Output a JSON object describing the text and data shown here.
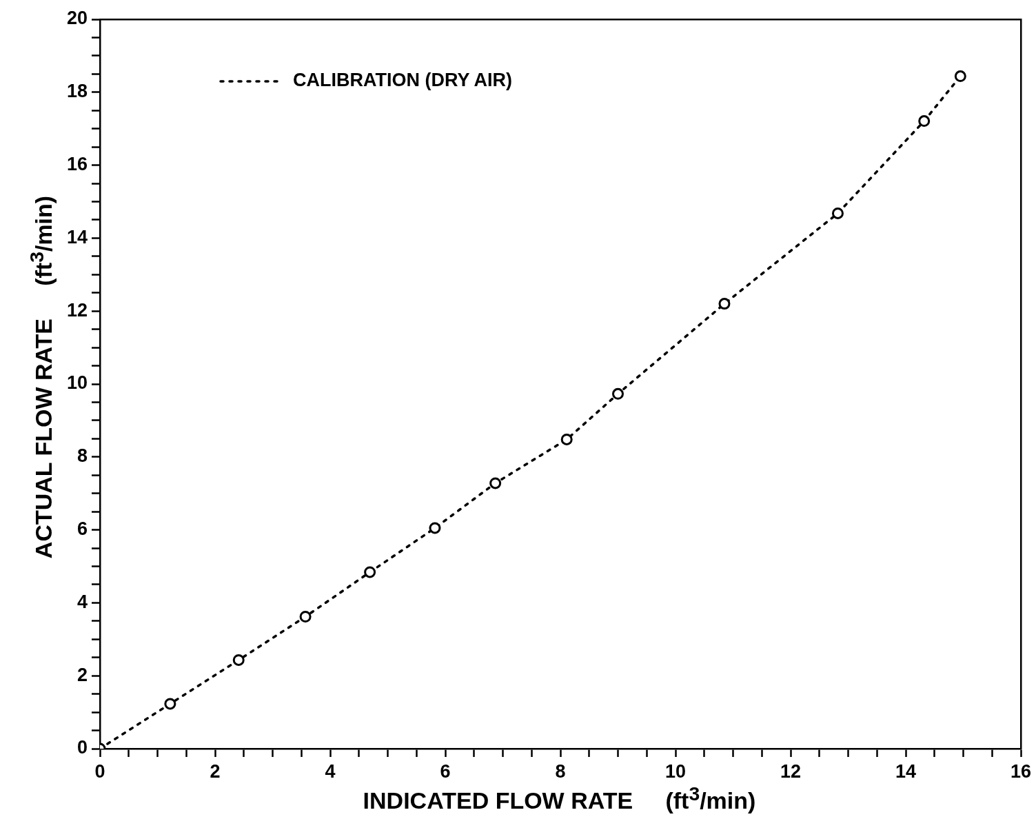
{
  "chart_data": {
    "type": "line",
    "xlabel": "INDICATED FLOW RATE     (ft$^{3}$/min)",
    "ylabel": "ACTUAL FLOW RATE     (ft$^{3}$/min)",
    "xlim": [
      0,
      16
    ],
    "ylim": [
      0,
      20
    ],
    "xticks": [
      0,
      {
        "value": 0.5,
        "label": null
      },
      {
        "value": 1,
        "label": null
      },
      {
        "value": 1.5,
        "label": null
      },
      2,
      {
        "value": 2.5,
        "label": null
      },
      {
        "value": 3,
        "label": null
      },
      {
        "value": 3.5,
        "label": null
      },
      4,
      {
        "value": 4.5,
        "label": null
      },
      {
        "value": 5,
        "label": null
      },
      {
        "value": 5.5,
        "label": null
      },
      6,
      {
        "value": 6.5,
        "label": null
      },
      {
        "value": 7,
        "label": null
      },
      {
        "value": 7.5,
        "label": null
      },
      8,
      {
        "value": 8.5,
        "label": null
      },
      {
        "value": 9,
        "label": null
      },
      {
        "value": 9.5,
        "label": null
      },
      10,
      {
        "value": 10.5,
        "label": null
      },
      {
        "value": 11,
        "label": null
      },
      {
        "value": 11.5,
        "label": null
      },
      12,
      {
        "value": 12.5,
        "label": null
      },
      {
        "value": 13,
        "label": null
      },
      {
        "value": 13.5,
        "label": null
      },
      14,
      {
        "value": 14.5,
        "label": null
      },
      {
        "value": 15,
        "label": null
      },
      {
        "value": 15.5,
        "label": null
      },
      16
    ],
    "yticks": [
      0,
      {
        "value": 0.5,
        "label": null
      },
      {
        "value": 1,
        "label": null
      },
      {
        "value": 1.5,
        "label": null
      },
      2,
      {
        "value": 2.5,
        "label": null
      },
      {
        "value": 3,
        "label": null
      },
      {
        "value": 3.5,
        "label": null
      },
      4,
      {
        "value": 4.5,
        "label": null
      },
      {
        "value": 5,
        "label": null
      },
      {
        "value": 5.5,
        "label": null
      },
      6,
      {
        "value": 6.5,
        "label": null
      },
      {
        "value": 7,
        "label": null
      },
      {
        "value": 7.5,
        "label": null
      },
      8,
      {
        "value": 8.5,
        "label": null
      },
      {
        "value": 9,
        "label": null
      },
      {
        "value": 9.5,
        "label": null
      },
      10,
      {
        "value": 10.5,
        "label": null
      },
      {
        "value": 11,
        "label": null
      },
      {
        "value": 11.5,
        "label": null
      },
      12,
      {
        "value": 12.5,
        "label": null
      },
      {
        "value": 13,
        "label": null
      },
      {
        "value": 13.5,
        "label": null
      },
      14,
      {
        "value": 14.5,
        "label": null
      },
      {
        "value": 15,
        "label": null
      },
      {
        "value": 15.5,
        "label": null
      },
      16,
      {
        "value": 16.5,
        "label": null
      },
      {
        "value": 17,
        "label": null
      },
      {
        "value": 17.5,
        "label": null
      },
      18,
      {
        "value": 18.5,
        "label": null
      },
      {
        "value": 19,
        "label": null
      },
      {
        "value": 19.5,
        "label": null
      },
      20
    ],
    "series": [
      {
        "name": "CALIBRATION (DRY AIR)",
        "color": "#000000",
        "x": [
          0,
          1.22,
          2.41,
          3.57,
          4.69,
          5.82,
          6.87,
          8.11,
          9.0,
          10.85,
          12.82,
          14.32,
          14.95
        ],
        "values": [
          0,
          1.23,
          2.43,
          3.62,
          4.84,
          6.05,
          7.28,
          8.48,
          9.73,
          12.2,
          14.68,
          17.21,
          18.44
        ]
      }
    ],
    "marker": "circle",
    "line_style": "dotted",
    "grid": false,
    "legend": "top left"
  }
}
